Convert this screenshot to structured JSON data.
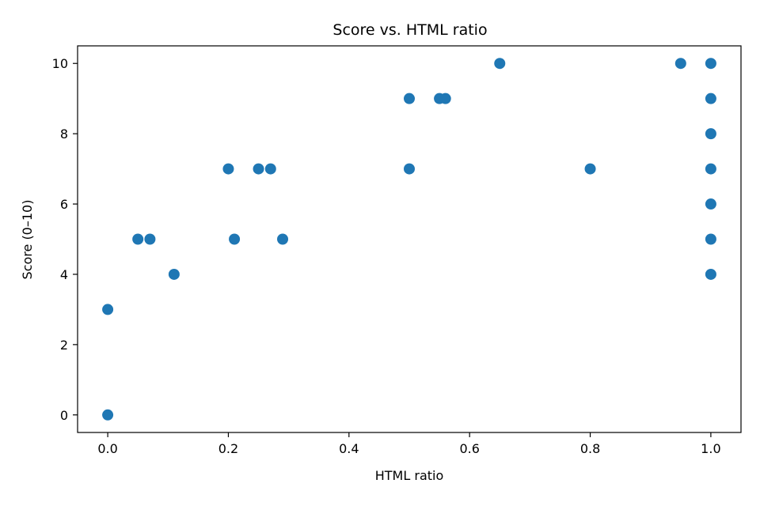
{
  "chart_data": {
    "type": "scatter",
    "title": "Score vs. HTML ratio",
    "xlabel": "HTML ratio",
    "ylabel": "Score (0–10)",
    "xlim": [
      -0.05,
      1.05
    ],
    "ylim": [
      -0.5,
      10.5
    ],
    "x_ticks": [
      0.0,
      0.2,
      0.4,
      0.6,
      0.8,
      1.0
    ],
    "x_tick_labels": [
      "0.0",
      "0.2",
      "0.4",
      "0.6",
      "0.8",
      "1.0"
    ],
    "y_ticks": [
      0,
      2,
      4,
      6,
      8,
      10
    ],
    "y_tick_labels": [
      "0",
      "2",
      "4",
      "6",
      "8",
      "10"
    ],
    "grid": false,
    "legend": "none",
    "marker_color": "#1f77b4",
    "series": [
      {
        "points": [
          {
            "x": 0.0,
            "y": 0
          },
          {
            "x": 0.0,
            "y": 3
          },
          {
            "x": 0.05,
            "y": 5
          },
          {
            "x": 0.07,
            "y": 5
          },
          {
            "x": 0.11,
            "y": 4
          },
          {
            "x": 0.2,
            "y": 7
          },
          {
            "x": 0.21,
            "y": 5
          },
          {
            "x": 0.25,
            "y": 7
          },
          {
            "x": 0.27,
            "y": 7
          },
          {
            "x": 0.29,
            "y": 5
          },
          {
            "x": 0.5,
            "y": 9
          },
          {
            "x": 0.5,
            "y": 7
          },
          {
            "x": 0.55,
            "y": 9
          },
          {
            "x": 0.56,
            "y": 9
          },
          {
            "x": 0.65,
            "y": 10
          },
          {
            "x": 0.8,
            "y": 7
          },
          {
            "x": 0.95,
            "y": 10
          },
          {
            "x": 1.0,
            "y": 10
          },
          {
            "x": 1.0,
            "y": 9
          },
          {
            "x": 1.0,
            "y": 8
          },
          {
            "x": 1.0,
            "y": 7
          },
          {
            "x": 1.0,
            "y": 6
          },
          {
            "x": 1.0,
            "y": 5
          },
          {
            "x": 1.0,
            "y": 4
          }
        ]
      }
    ]
  }
}
